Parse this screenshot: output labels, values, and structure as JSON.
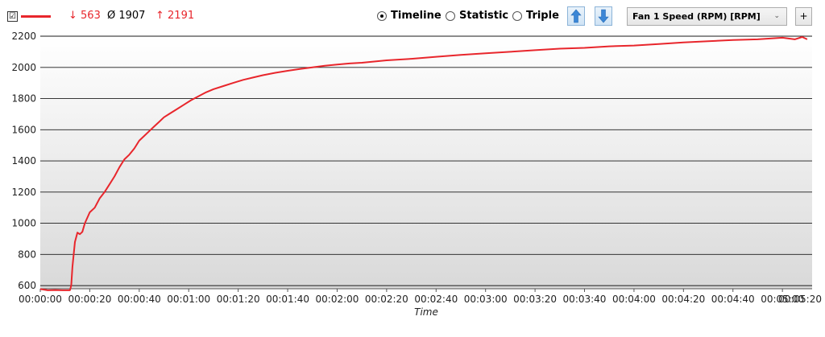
{
  "toolbar": {
    "checkbox_mark": "☑",
    "stats": {
      "min": "↓ 563",
      "avg": "Ø 1907",
      "max": "↑ 2191"
    },
    "modes": [
      {
        "label": "Timeline",
        "checked": true
      },
      {
        "label": "Statistic",
        "checked": false
      },
      {
        "label": "Triple",
        "checked": false
      }
    ],
    "sensor_select": "Fan 1 Speed (RPM) [RPM]",
    "add_label": "+"
  },
  "colors": {
    "series": "#e8262c",
    "arrow": "#3b86d6"
  },
  "chart_data": {
    "type": "line",
    "title": "",
    "xlabel": "Time",
    "ylabel": "",
    "ylim": [
      580,
      2200
    ],
    "xlim": [
      0,
      312
    ],
    "grid": true,
    "y_ticks": [
      600,
      800,
      1000,
      1200,
      1400,
      1600,
      1800,
      2000,
      2200
    ],
    "x_ticks": [
      "00:00:00",
      "00:00:20",
      "00:00:40",
      "00:01:00",
      "00:01:20",
      "00:01:40",
      "00:02:00",
      "00:02:20",
      "00:02:40",
      "00:03:00",
      "00:03:20",
      "00:03:40",
      "00:04:00",
      "00:04:20",
      "00:04:40",
      "00:05:00",
      "00:05:20"
    ],
    "series": [
      {
        "name": "",
        "x": [
          0,
          3,
          6,
          9,
          12,
          12.5,
          13,
          14,
          15,
          16,
          17,
          18,
          20,
          22,
          24,
          26,
          28,
          30,
          32,
          34,
          36,
          38,
          40,
          42,
          44,
          46,
          48,
          50,
          52,
          55,
          58,
          61,
          64,
          67,
          70,
          74,
          78,
          82,
          86,
          90,
          95,
          100,
          105,
          110,
          115,
          120,
          125,
          130,
          140,
          150,
          160,
          170,
          180,
          190,
          200,
          210,
          220,
          230,
          240,
          250,
          260,
          270,
          280,
          290,
          300,
          305,
          308,
          310
        ],
        "y": [
          578,
          570,
          572,
          570,
          570,
          600,
          720,
          880,
          940,
          930,
          945,
          1000,
          1070,
          1100,
          1160,
          1200,
          1250,
          1300,
          1360,
          1410,
          1440,
          1480,
          1530,
          1560,
          1590,
          1620,
          1650,
          1680,
          1700,
          1730,
          1760,
          1790,
          1815,
          1840,
          1860,
          1880,
          1900,
          1920,
          1935,
          1950,
          1965,
          1978,
          1990,
          2000,
          2010,
          2018,
          2025,
          2030,
          2045,
          2055,
          2068,
          2080,
          2090,
          2100,
          2110,
          2120,
          2125,
          2135,
          2140,
          2150,
          2160,
          2168,
          2175,
          2180,
          2190,
          2180,
          2195,
          2180
        ]
      }
    ]
  }
}
